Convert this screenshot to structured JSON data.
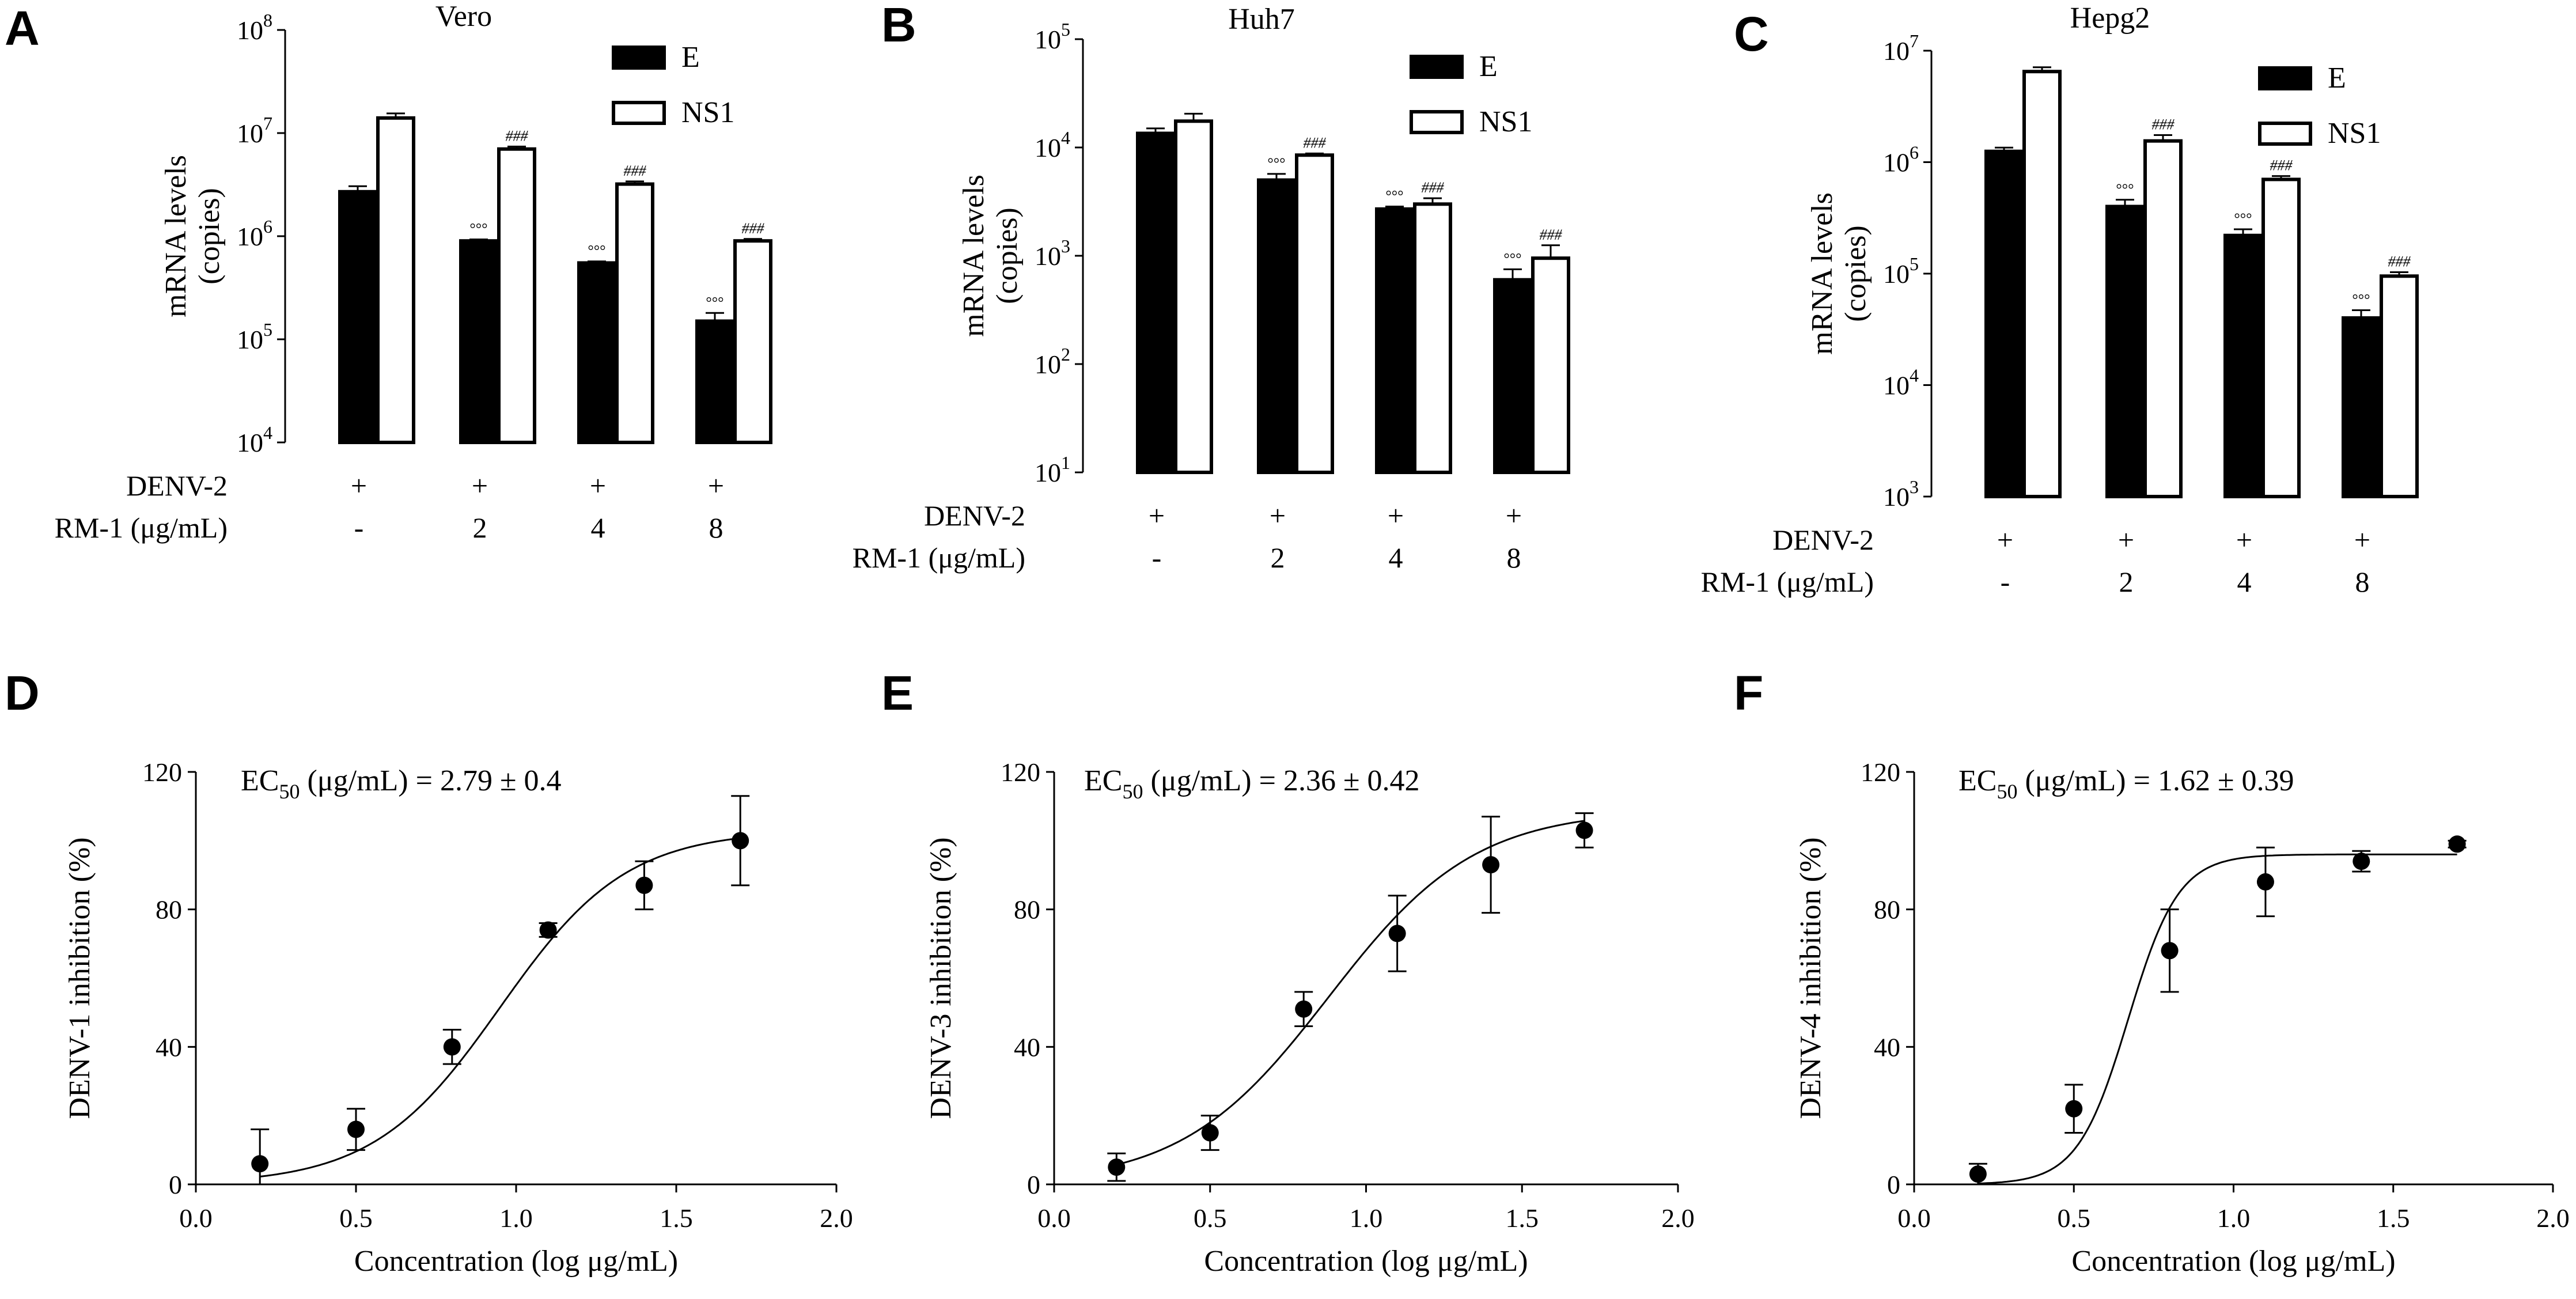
{
  "chart_data": [
    {
      "panel": "A",
      "type": "bar",
      "title": "Vero",
      "ylabel": "mRNA levels\n(copies)",
      "yscale": "log",
      "ylim_exp": [
        4,
        8
      ],
      "tick_exponents": [
        4,
        5,
        6,
        7,
        8
      ],
      "legend": [
        "E",
        "NS1"
      ],
      "conditions": {
        "row1_label": "DENV-2",
        "row2_label": "RM-1 (μg/mL)",
        "row1": [
          "+",
          "+",
          "+",
          "+"
        ],
        "row2": [
          "-",
          "2",
          "4",
          "8"
        ]
      },
      "series": [
        {
          "name": "E",
          "values": [
            2700000,
            900000,
            550000,
            150000
          ],
          "err": [
            350000,
            30000,
            20000,
            30000
          ],
          "marks": [
            "",
            "°°°",
            "°°°",
            "°°°"
          ]
        },
        {
          "name": "NS1",
          "values": [
            14000000,
            7000000,
            3200000,
            900000
          ],
          "err": [
            1500000,
            400000,
            200000,
            40000
          ],
          "marks": [
            "",
            "###",
            "###",
            "###"
          ]
        }
      ]
    },
    {
      "panel": "B",
      "type": "bar",
      "title": "Huh7",
      "ylabel": "mRNA levels\n(copies)",
      "yscale": "log",
      "ylim_exp": [
        1,
        5
      ],
      "tick_exponents": [
        1,
        2,
        3,
        4,
        5
      ],
      "legend": [
        "E",
        "NS1"
      ],
      "conditions": {
        "row1_label": "DENV-2",
        "row2_label": "RM-1 (μg/mL)",
        "row1": [
          "+",
          "+",
          "+",
          "+"
        ],
        "row2": [
          "-",
          "2",
          "4",
          "8"
        ]
      },
      "series": [
        {
          "name": "E",
          "values": [
            13500,
            5000,
            2700,
            600
          ],
          "err": [
            1500,
            700,
            150,
            150
          ],
          "marks": [
            "",
            "°°°",
            "°°°",
            "°°°"
          ]
        },
        {
          "name": "NS1",
          "values": [
            17500,
            8500,
            3000,
            950
          ],
          "err": [
            3000,
            300,
            400,
            300
          ],
          "marks": [
            "",
            "###",
            "###",
            "###"
          ]
        }
      ]
    },
    {
      "panel": "C",
      "type": "bar",
      "title": "Hepg2",
      "ylabel": "mRNA levels\n(copies)",
      "yscale": "log",
      "ylim_exp": [
        3,
        7
      ],
      "tick_exponents": [
        3,
        4,
        5,
        6,
        7
      ],
      "legend": [
        "E",
        "NS1"
      ],
      "conditions": {
        "row1_label": "DENV-2",
        "row2_label": "RM-1 (μg/mL)",
        "row1": [
          "+",
          "+",
          "+",
          "+"
        ],
        "row2": [
          "-",
          "2",
          "4",
          "8"
        ]
      },
      "series": [
        {
          "name": "E",
          "values": [
            1250000,
            400000,
            220000,
            40000
          ],
          "err": [
            100000,
            60000,
            30000,
            7000
          ],
          "marks": [
            "",
            "°°°",
            "°°°",
            "°°°"
          ]
        },
        {
          "name": "NS1",
          "values": [
            6500000,
            1550000,
            700000,
            95000
          ],
          "err": [
            600000,
            200000,
            50000,
            8000
          ],
          "marks": [
            "",
            "###",
            "###",
            "###"
          ]
        }
      ]
    },
    {
      "panel": "D",
      "type": "scatter",
      "ylabel": "DENV-1 inhibition (%)",
      "xlabel": "Concentration (log μg/mL)",
      "xlim": [
        0.0,
        2.0
      ],
      "ylim": [
        0,
        120
      ],
      "xticks": [
        0.0,
        0.5,
        1.0,
        1.5,
        2.0
      ],
      "yticks": [
        0,
        40,
        80,
        120
      ],
      "ec50_prefix": "EC",
      "ec50_sub": "50",
      "ec50_suffix": " (μg/mL) = 2.79 ± 0.4",
      "x": [
        0.2,
        0.5,
        0.8,
        1.1,
        1.4,
        1.7
      ],
      "y": [
        6,
        16,
        40,
        74,
        87,
        100
      ],
      "err": [
        10,
        6,
        5,
        2,
        7,
        13
      ],
      "curve": {
        "bottom": 0,
        "top": 103,
        "logEC50": 0.95,
        "hill": 2.2
      }
    },
    {
      "panel": "E",
      "type": "scatter",
      "ylabel": "DENV-3 inhibition (%)",
      "xlabel": "Concentration (log μg/mL)",
      "xlim": [
        0.0,
        2.0
      ],
      "ylim": [
        0,
        120
      ],
      "xticks": [
        0.0,
        0.5,
        1.0,
        1.5,
        2.0
      ],
      "yticks": [
        0,
        40,
        80,
        120
      ],
      "ec50_prefix": "EC",
      "ec50_sub": "50",
      "ec50_suffix": " (μg/mL) = 2.36 ± 0.42",
      "x": [
        0.2,
        0.5,
        0.8,
        1.1,
        1.4,
        1.7
      ],
      "y": [
        5,
        15,
        51,
        73,
        93,
        103
      ],
      "err": [
        4,
        5,
        5,
        11,
        14,
        5
      ],
      "curve": {
        "bottom": 0,
        "top": 109,
        "logEC50": 0.88,
        "hill": 1.85
      }
    },
    {
      "panel": "F",
      "type": "scatter",
      "ylabel": "DENV-4 inhibition (%)",
      "xlabel": "Concentration (log μg/mL)",
      "xlim": [
        0.0,
        2.0
      ],
      "ylim": [
        0,
        120
      ],
      "xticks": [
        0.0,
        0.5,
        1.0,
        1.5,
        2.0
      ],
      "yticks": [
        0,
        40,
        80,
        120
      ],
      "ec50_prefix": "EC",
      "ec50_sub": "50",
      "ec50_suffix": " (μg/mL) = 1.62 ± 0.39",
      "x": [
        0.2,
        0.5,
        0.8,
        1.1,
        1.4,
        1.7
      ],
      "y": [
        3,
        22,
        68,
        88,
        94,
        99
      ],
      "err": [
        3,
        7,
        12,
        10,
        3,
        1
      ],
      "curve": {
        "bottom": 0,
        "top": 96,
        "logEC50": 0.67,
        "hill": 5.5
      }
    }
  ]
}
